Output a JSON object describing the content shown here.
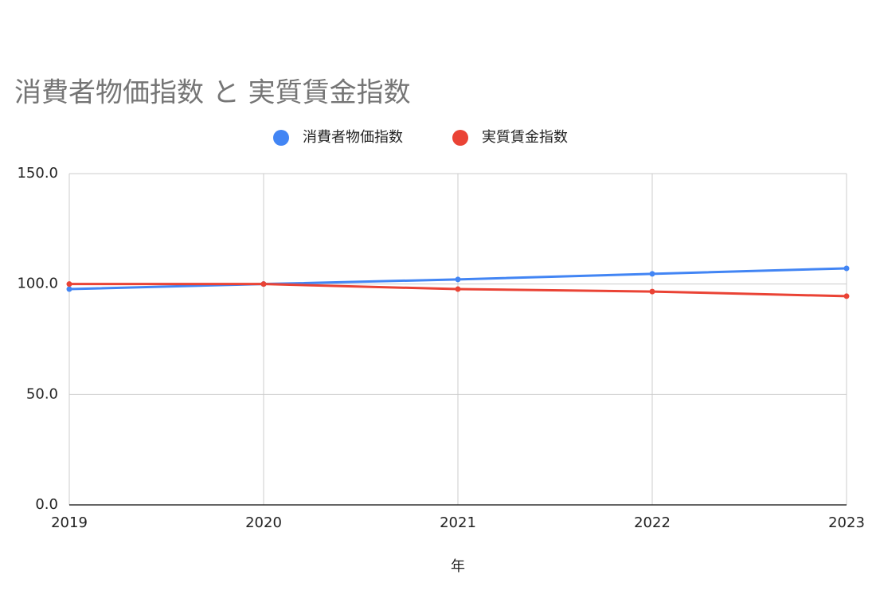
{
  "chart_data": {
    "type": "line",
    "title": "消費者物価指数 と 実質賃金指数",
    "x_label": "年",
    "x": [
      2019,
      2020,
      2021,
      2022,
      2023
    ],
    "xlim": [
      2019,
      2023
    ],
    "xticks": [
      2019,
      2020,
      2021,
      2022,
      2023
    ],
    "ylim": [
      0,
      150
    ],
    "yticks": [
      {
        "value": 0,
        "label": "0.0"
      },
      {
        "value": 50,
        "label": "50.0"
      },
      {
        "value": 100,
        "label": "100.0"
      },
      {
        "value": 150,
        "label": "150.0"
      }
    ],
    "grid": true,
    "legend": "top",
    "series": [
      {
        "name": "消費者物価指数",
        "color": "#4285f4",
        "values": [
          97.7,
          100,
          102.1,
          104.6,
          107.1
        ]
      },
      {
        "name": "実質賃金指数",
        "color": "#ea4335",
        "values": [
          100,
          100,
          97.7,
          96.6,
          94.5
        ]
      }
    ]
  }
}
